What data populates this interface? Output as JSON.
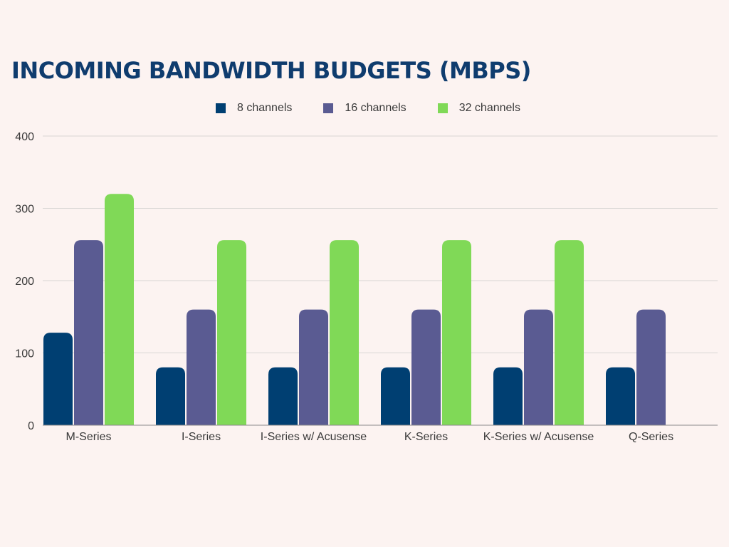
{
  "chart_data": {
    "type": "bar",
    "title": "INCOMING BANDWIDTH BUDGETS (MBPS)",
    "xlabel": "",
    "ylabel": "",
    "ylim": [
      0,
      400
    ],
    "yticks": [
      0,
      100,
      200,
      300,
      400
    ],
    "grid": true,
    "legend_position": "top-center",
    "categories": [
      "M-Series",
      "I-Series",
      "I-Series w/ Acusense",
      "K-Series",
      "K-Series w/ Acusense",
      "Q-Series"
    ],
    "series": [
      {
        "name": "8 channels",
        "color": "#003f72",
        "values": [
          128,
          80,
          80,
          80,
          80,
          80
        ]
      },
      {
        "name": "16 channels",
        "color": "#5a5b92",
        "values": [
          256,
          160,
          160,
          160,
          160,
          160
        ]
      },
      {
        "name": "32 channels",
        "color": "#80d957",
        "values": [
          320,
          256,
          256,
          256,
          256,
          null
        ]
      }
    ]
  }
}
